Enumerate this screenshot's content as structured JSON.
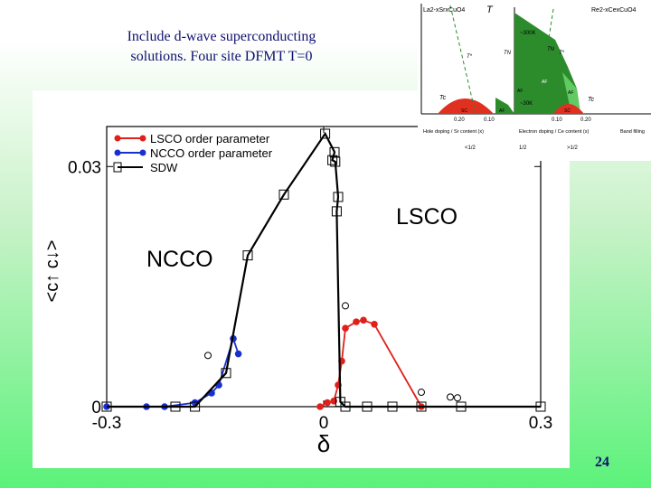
{
  "title": {
    "line1": "Include  d-wave superconducting",
    "line2": "solutions. Four site DFMT T=0"
  },
  "slide_number": "24",
  "chart_data": [
    {
      "type": "line",
      "title": "",
      "xlabel": "δ",
      "ylabel": "<c↑ c↓>",
      "xlim": [
        -0.3,
        0.3
      ],
      "ylim": [
        0,
        0.035
      ],
      "x_ticks": [
        "-0.3",
        "0",
        "0.3"
      ],
      "y_ticks": [
        "0",
        "0.03"
      ],
      "legend_position": "top-left",
      "legend": [
        "LSCO order parameter",
        "NCCO order parameter",
        "SDW"
      ],
      "annotations": [
        "LSCO",
        "NCCO"
      ],
      "colors": {
        "lsco": "#e0201a",
        "ncco": "#1a2fd0",
        "sdw": "#000000"
      },
      "series": [
        {
          "name": "LSCO order parameter",
          "x": [
            -0.005,
            0.005,
            0.014,
            0.02,
            0.025,
            0.03,
            0.045,
            0.055,
            0.07,
            0.135
          ],
          "y": [
            0.0,
            0.0005,
            0.0007,
            0.0027,
            0.0057,
            0.0098,
            0.0106,
            0.0108,
            0.0103,
            0.0
          ]
        },
        {
          "name": "NCCO order parameter",
          "x": [
            -0.3,
            -0.245,
            -0.22,
            -0.178,
            -0.155,
            -0.145,
            -0.125,
            -0.118
          ],
          "y": [
            0.0,
            0.0,
            0.0,
            0.0005,
            0.0017,
            0.0027,
            0.0085,
            0.0066
          ]
        },
        {
          "name": "SDW",
          "x": [
            0.3,
            0.19,
            0.135,
            0.095,
            0.06,
            0.03,
            0.023,
            0.018,
            0.02,
            0.016,
            0.012,
            0.015,
            0.002,
            -0.055,
            -0.105,
            -0.135,
            -0.178,
            -0.205,
            -0.3
          ],
          "y": [
            0.0,
            0.0,
            0.0,
            0.0,
            0.0,
            0.0,
            0.0006,
            0.0244,
            0.0262,
            0.0306,
            0.0308,
            0.0318,
            0.0341,
            0.0265,
            0.0189,
            0.0042,
            0.0,
            0.0,
            0.0
          ]
        }
      ],
      "open_circles": {
        "x": [
          -0.16,
          0.03,
          0.135,
          0.175,
          0.185
        ],
        "y": [
          0.0064,
          0.0126,
          0.0018,
          0.0012,
          0.0011
        ]
      }
    },
    {
      "type": "diagram",
      "title_left": "La2-xSrxCuO4",
      "title_center": "T",
      "title_right": "Re2-xCexCuO4",
      "labels": [
        "~300K",
        "~30K",
        "TN",
        "T*",
        "T*",
        "TN",
        "Tc",
        "Tc",
        "AF",
        "AF",
        "AF",
        "SC",
        "SC",
        "AF"
      ],
      "ticks_left": [
        "0.20",
        "0.10"
      ],
      "ticks_right": [
        "0.10",
        "0.20"
      ],
      "axis_left": "Hole doping / Sr content (x)",
      "axis_right": "Electron doping / Ce content (x)",
      "axis_far": "Band filling",
      "filling_labels": [
        "<1/2",
        "1/2",
        ">1/2"
      ]
    }
  ]
}
